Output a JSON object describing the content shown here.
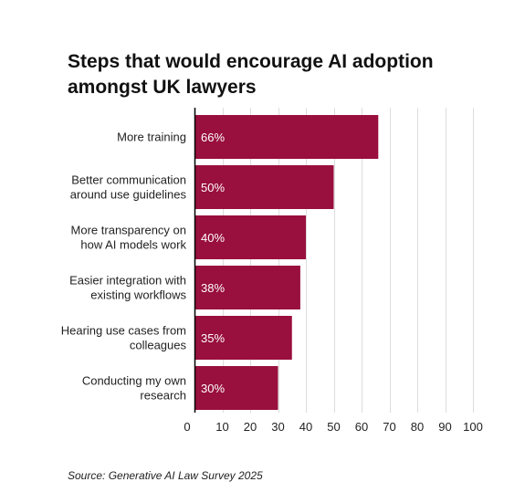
{
  "chart_data": {
    "type": "bar",
    "orientation": "horizontal",
    "title": "Steps that would encourage AI adoption amongst UK lawyers",
    "categories": [
      "More training",
      "Better communication around use guidelines",
      "More transparency on how AI models work",
      "Easier integration with existing workflows",
      "Hearing use cases from colleagues",
      "Conducting my own research"
    ],
    "category_lines": [
      [
        "More training"
      ],
      [
        "Better communication",
        "around use guidelines"
      ],
      [
        "More transparency on",
        "how AI models work"
      ],
      [
        "Easier integration with",
        "existing workflows"
      ],
      [
        "Hearing use cases from",
        "colleagues"
      ],
      [
        "Conducting my own",
        "research"
      ]
    ],
    "values": [
      66,
      50,
      40,
      38,
      35,
      30
    ],
    "data_labels": [
      "66%",
      "50%",
      "40%",
      "38%",
      "35%",
      "30%"
    ],
    "xlim": [
      0,
      100
    ],
    "xticks": [
      0,
      10,
      20,
      30,
      40,
      50,
      60,
      70,
      80,
      90,
      100
    ],
    "xtick_labels": [
      "0",
      "10",
      "20",
      "30",
      "40",
      "50",
      "60",
      "70",
      "80",
      "90",
      "100"
    ],
    "grid": "vertical",
    "bar_color": "#990f3d",
    "grid_color": "#dddddd",
    "axis_color": "#000000"
  },
  "source": "Source: Generative AI Law Survey 2025"
}
